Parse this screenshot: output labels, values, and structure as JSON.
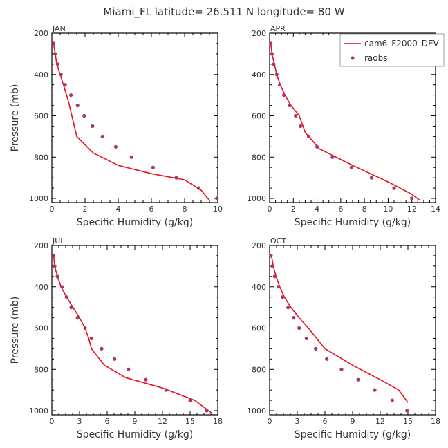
{
  "title": "Miami_FL  latitude= 26.511 N longitude= 80 W",
  "legend": {
    "model_label": "cam6_F2000_DEV",
    "obs_label": "raobs"
  },
  "colors": {
    "model": "#e8121c",
    "obs": "#a8376a",
    "axis": "#000000",
    "text": "#333333"
  },
  "chart_data": [
    {
      "type": "line",
      "panel_label": "JAN",
      "xlabel": "Specific Humidity (g/kg)",
      "ylabel": "Pressure (mb)",
      "xlim": [
        0,
        10
      ],
      "ylim": [
        200,
        1020
      ],
      "x_ticks": [
        0,
        2,
        4,
        6,
        8,
        10
      ],
      "y_ticks": [
        200,
        400,
        600,
        800,
        1000
      ],
      "series": [
        {
          "name": "cam6_F2000_DEV",
          "kind": "line",
          "x": [
            0.1,
            0.2,
            0.3,
            0.5,
            0.7,
            1.0,
            1.5,
            2.5,
            4.0,
            6.0,
            8.0,
            9.0,
            9.5
          ],
          "y": [
            250,
            300,
            350,
            400,
            450,
            530,
            700,
            780,
            840,
            880,
            910,
            960,
            1010
          ]
        },
        {
          "name": "raobs",
          "kind": "points",
          "x": [
            0.1,
            0.2,
            0.35,
            0.55,
            0.8,
            1.15,
            1.55,
            1.95,
            2.45,
            3.05,
            3.85,
            4.8,
            6.1,
            7.5,
            8.85,
            9.95
          ],
          "y": [
            250,
            300,
            350,
            400,
            450,
            500,
            550,
            600,
            650,
            700,
            750,
            800,
            850,
            900,
            950,
            1000
          ]
        }
      ]
    },
    {
      "type": "line",
      "panel_label": "APR",
      "xlabel": "Specific Humidity (g/kg)",
      "ylabel": "",
      "xlim": [
        0,
        14
      ],
      "ylim": [
        200,
        1020
      ],
      "x_ticks": [
        0,
        2,
        4,
        6,
        8,
        10,
        12,
        14
      ],
      "y_ticks": [
        200,
        400,
        600,
        800,
        1000
      ],
      "series": [
        {
          "name": "cam6_F2000_DEV",
          "kind": "line",
          "x": [
            0.1,
            0.2,
            0.4,
            0.6,
            0.9,
            1.3,
            1.8,
            2.5,
            3.0,
            4.2,
            7.0,
            10.0,
            12.0,
            12.7
          ],
          "y": [
            250,
            300,
            350,
            400,
            450,
            500,
            550,
            600,
            680,
            760,
            840,
            920,
            980,
            1010
          ]
        },
        {
          "name": "raobs",
          "kind": "points",
          "x": [
            0.1,
            0.2,
            0.35,
            0.6,
            0.85,
            1.2,
            1.7,
            2.2,
            2.6,
            3.3,
            4.0,
            5.3,
            6.9,
            8.6,
            10.5,
            12.0
          ],
          "y": [
            250,
            300,
            350,
            400,
            450,
            500,
            550,
            600,
            650,
            700,
            750,
            800,
            850,
            900,
            950,
            1000
          ]
        }
      ]
    },
    {
      "type": "line",
      "panel_label": "JUL",
      "xlabel": "Specific Humidity (g/kg)",
      "ylabel": "Pressure (mb)",
      "xlim": [
        0,
        18
      ],
      "ylim": [
        200,
        1020
      ],
      "x_ticks": [
        0,
        3,
        6,
        9,
        12,
        15,
        18
      ],
      "y_ticks": [
        200,
        400,
        600,
        800,
        1000
      ],
      "series": [
        {
          "name": "cam6_F2000_DEV",
          "kind": "line",
          "x": [
            0.2,
            0.3,
            0.6,
            1.0,
            1.6,
            2.3,
            3.0,
            3.6,
            4.0,
            4.3,
            5.7,
            8.0,
            12.0,
            15.5,
            17.3
          ],
          "y": [
            250,
            300,
            350,
            400,
            450,
            500,
            550,
            600,
            650,
            700,
            780,
            840,
            890,
            950,
            1010
          ]
        },
        {
          "name": "raobs",
          "kind": "points",
          "x": [
            0.2,
            0.3,
            0.6,
            1.1,
            1.6,
            2.1,
            2.8,
            3.6,
            4.3,
            5.4,
            6.8,
            8.3,
            10.2,
            12.4,
            15.0,
            16.8
          ],
          "y": [
            250,
            300,
            350,
            400,
            450,
            500,
            550,
            600,
            650,
            700,
            750,
            800,
            850,
            900,
            950,
            1000
          ]
        }
      ]
    },
    {
      "type": "line",
      "panel_label": "OCT",
      "xlabel": "Specific Humidity (g/kg)",
      "ylabel": "",
      "xlim": [
        0,
        18
      ],
      "ylim": [
        200,
        1020
      ],
      "x_ticks": [
        0,
        3,
        6,
        9,
        12,
        15,
        18
      ],
      "y_ticks": [
        200,
        400,
        600,
        800,
        1000
      ],
      "series": [
        {
          "name": "cam6_F2000_DEV",
          "kind": "line",
          "x": [
            0.2,
            0.4,
            0.7,
            1.1,
            1.6,
            2.3,
            3.2,
            4.2,
            6.0,
            9.0,
            12.0,
            14.0,
            15.0
          ],
          "y": [
            250,
            300,
            350,
            400,
            450,
            500,
            550,
            600,
            700,
            780,
            850,
            900,
            960
          ]
        },
        {
          "name": "raobs",
          "kind": "points",
          "x": [
            0.15,
            0.3,
            0.55,
            0.95,
            1.4,
            2.0,
            2.6,
            3.2,
            4.0,
            5.0,
            6.2,
            7.8,
            9.6,
            11.4,
            13.3,
            14.9
          ],
          "y": [
            250,
            300,
            350,
            400,
            450,
            500,
            550,
            600,
            650,
            700,
            750,
            800,
            850,
            900,
            950,
            1000
          ]
        }
      ]
    }
  ]
}
